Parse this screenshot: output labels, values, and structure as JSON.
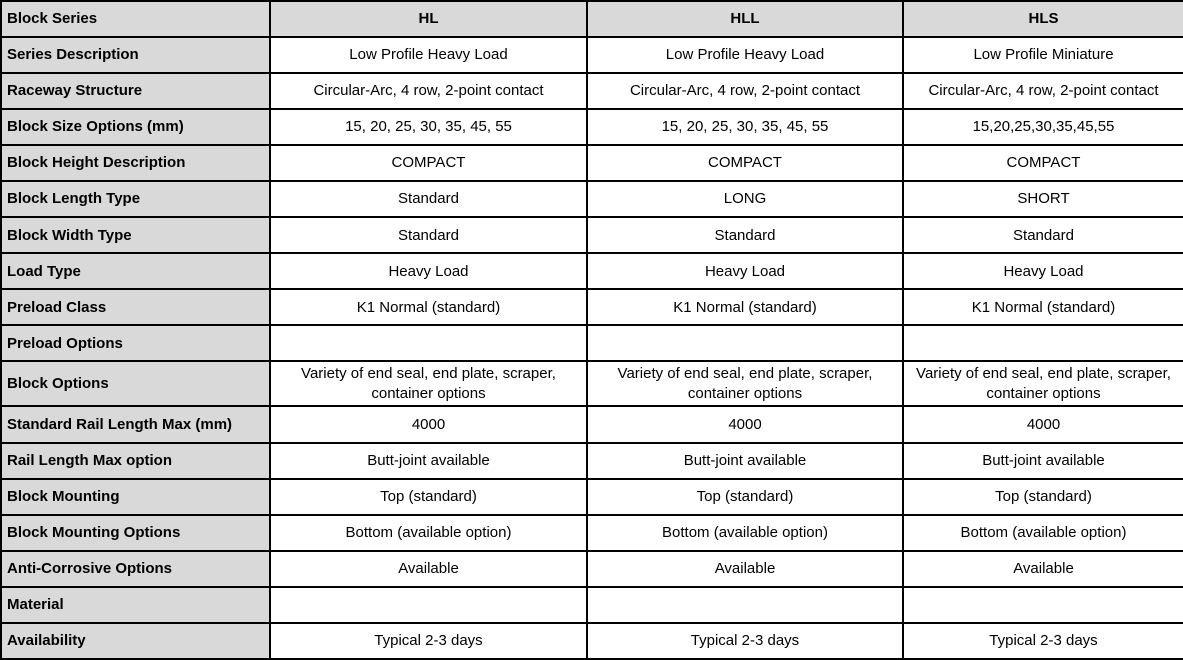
{
  "table": {
    "columns": [
      "Block Series",
      "HL",
      "HLL",
      "HLS"
    ],
    "rows": [
      {
        "label": "Series Description",
        "values": [
          "Low Profile Heavy Load",
          "Low Profile Heavy Load",
          "Low Profile Miniature"
        ]
      },
      {
        "label": "Raceway Structure",
        "values": [
          "Circular-Arc, 4 row, 2-point contact",
          "Circular-Arc, 4 row, 2-point contact",
          "Circular-Arc, 4 row, 2-point contact"
        ]
      },
      {
        "label": "Block Size Options (mm)",
        "values": [
          "15, 20, 25, 30, 35, 45, 55",
          "15, 20, 25, 30, 35, 45, 55",
          "15,20,25,30,35,45,55"
        ]
      },
      {
        "label": "Block Height Description",
        "values": [
          "COMPACT",
          "COMPACT",
          "COMPACT"
        ]
      },
      {
        "label": "Block Length Type",
        "values": [
          "Standard",
          "LONG",
          "SHORT"
        ]
      },
      {
        "label": "Block Width Type",
        "values": [
          "Standard",
          "Standard",
          "Standard"
        ]
      },
      {
        "label": "Load Type",
        "values": [
          "Heavy Load",
          "Heavy Load",
          "Heavy Load"
        ]
      },
      {
        "label": "Preload Class",
        "values": [
          "K1 Normal (standard)",
          "K1 Normal (standard)",
          "K1 Normal (standard)"
        ]
      },
      {
        "label": "Preload Options",
        "values": [
          "",
          "",
          ""
        ]
      },
      {
        "label": "Block Options",
        "values": [
          "Variety of end seal, end plate, scraper, container options",
          "Variety of end seal, end plate, scraper, container options",
          "Variety of end seal, end plate, scraper, container options"
        ]
      },
      {
        "label": "Standard Rail Length Max (mm)",
        "values": [
          "4000",
          "4000",
          "4000"
        ]
      },
      {
        "label": "Rail Length Max option",
        "values": [
          "Butt-joint available",
          "Butt-joint available",
          "Butt-joint available"
        ]
      },
      {
        "label": "Block Mounting",
        "values": [
          "Top (standard)",
          "Top (standard)",
          "Top (standard)"
        ]
      },
      {
        "label": "Block Mounting Options",
        "values": [
          "Bottom (available option)",
          "Bottom (available option)",
          "Bottom (available option)"
        ]
      },
      {
        "label": "Anti-Corrosive Options",
        "values": [
          "Available",
          "Available",
          "Available"
        ]
      },
      {
        "label": "Material",
        "values": [
          "",
          "",
          ""
        ]
      },
      {
        "label": "Availability",
        "values": [
          "Typical 2-3 days",
          "Typical 2-3 days",
          "Typical 2-3 days"
        ]
      }
    ],
    "colors": {
      "header_bg": "#d9d9d9",
      "cell_bg": "#ffffff",
      "border": "#000000",
      "text": "#000000"
    }
  }
}
